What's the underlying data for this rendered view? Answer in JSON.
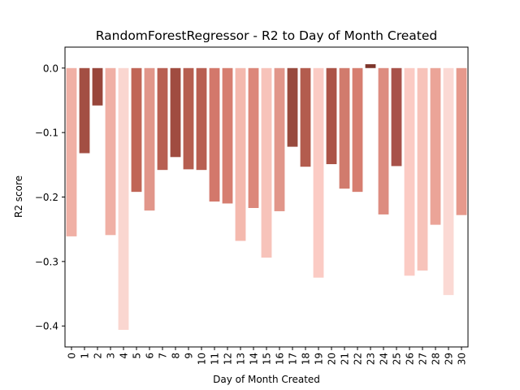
{
  "chart_data": {
    "type": "bar",
    "title": "RandomForestRegressor - R2 to Day of Month Created",
    "xlabel": "Day of Month Created",
    "ylabel": "R2 score",
    "ylim": [
      -0.4325,
      0.0325
    ],
    "yticks": [
      0.0,
      -0.1,
      -0.2,
      -0.3,
      -0.4
    ],
    "ytick_labels": [
      "0.0",
      "−0.1",
      "−0.2",
      "−0.3",
      "−0.4"
    ],
    "categories": [
      "0",
      "1",
      "2",
      "3",
      "4",
      "5",
      "6",
      "7",
      "8",
      "9",
      "10",
      "11",
      "12",
      "13",
      "14",
      "15",
      "16",
      "17",
      "18",
      "19",
      "20",
      "21",
      "22",
      "23",
      "24",
      "25",
      "26",
      "27",
      "28",
      "29",
      "30"
    ],
    "values": [
      -0.261,
      -0.132,
      -0.058,
      -0.259,
      -0.406,
      -0.192,
      -0.221,
      -0.158,
      -0.138,
      -0.157,
      -0.158,
      -0.207,
      -0.21,
      -0.268,
      -0.217,
      -0.294,
      -0.222,
      -0.122,
      -0.153,
      -0.325,
      -0.149,
      -0.187,
      -0.192,
      0.006,
      -0.227,
      -0.152,
      -0.322,
      -0.314,
      -0.243,
      -0.352,
      -0.228
    ],
    "colors": [
      "#f0b0a5",
      "#a34f43",
      "#98463b",
      "#f0b0a5",
      "#fad6d0",
      "#c06556",
      "#e1968a",
      "#b85f52",
      "#a04c40",
      "#b65e50",
      "#b85f52",
      "#d3786b",
      "#d67e70",
      "#f4b9ae",
      "#dc877a",
      "#f7c3ba",
      "#e1968a",
      "#984a3e",
      "#b35c4e",
      "#fbcbc4",
      "#ab5347",
      "#d17b6d",
      "#d67e70",
      "#7e362c",
      "#dd8c80",
      "#a8524a",
      "#fbcbc4",
      "#f7c3ba",
      "#eba498",
      "#fbd9d4",
      "#e6998c"
    ],
    "grid": false,
    "legend": "none"
  }
}
